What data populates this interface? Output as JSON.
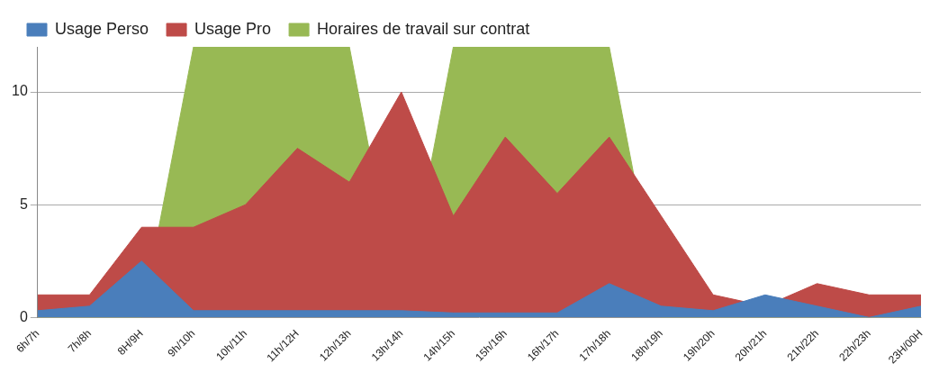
{
  "chart_data": {
    "type": "area",
    "categories": [
      "6h/7h",
      "7h/8h",
      "8H/9H",
      "9h/10h",
      "10h/11h",
      "11h/12H",
      "12h/13h",
      "13h/14h",
      "14h/15h",
      "15h/16h",
      "16h/17h",
      "17h/18h",
      "18h/19h",
      "19h/20h",
      "20h/21h",
      "21h/22h",
      "22h/23h",
      "23H/00H"
    ],
    "series": [
      {
        "name": "Usage Perso",
        "color": "#4a7ebb",
        "values": [
          0.3,
          0.5,
          2.5,
          0.3,
          0.3,
          0.3,
          0.3,
          0.3,
          0.2,
          0.2,
          0.2,
          1.5,
          0.5,
          0.3,
          1,
          0.5,
          0,
          0.5
        ]
      },
      {
        "name": "Usage Pro",
        "color": "#be4b48",
        "values": [
          1,
          1,
          4,
          4,
          5,
          7.5,
          6,
          10,
          4.5,
          8,
          5.5,
          8,
          4.5,
          1,
          0.5,
          1.5,
          1,
          1
        ]
      },
      {
        "name": "Horaires de travail sur contrat",
        "color": "#98b954",
        "values": [
          0,
          0,
          0,
          12,
          12,
          12,
          12,
          0,
          12,
          12,
          12,
          12,
          0,
          0,
          0,
          0,
          0,
          0
        ]
      }
    ],
    "ylim": [
      0,
      12
    ],
    "yticks": [
      0,
      5,
      10
    ],
    "grid": true,
    "legend": "top"
  }
}
